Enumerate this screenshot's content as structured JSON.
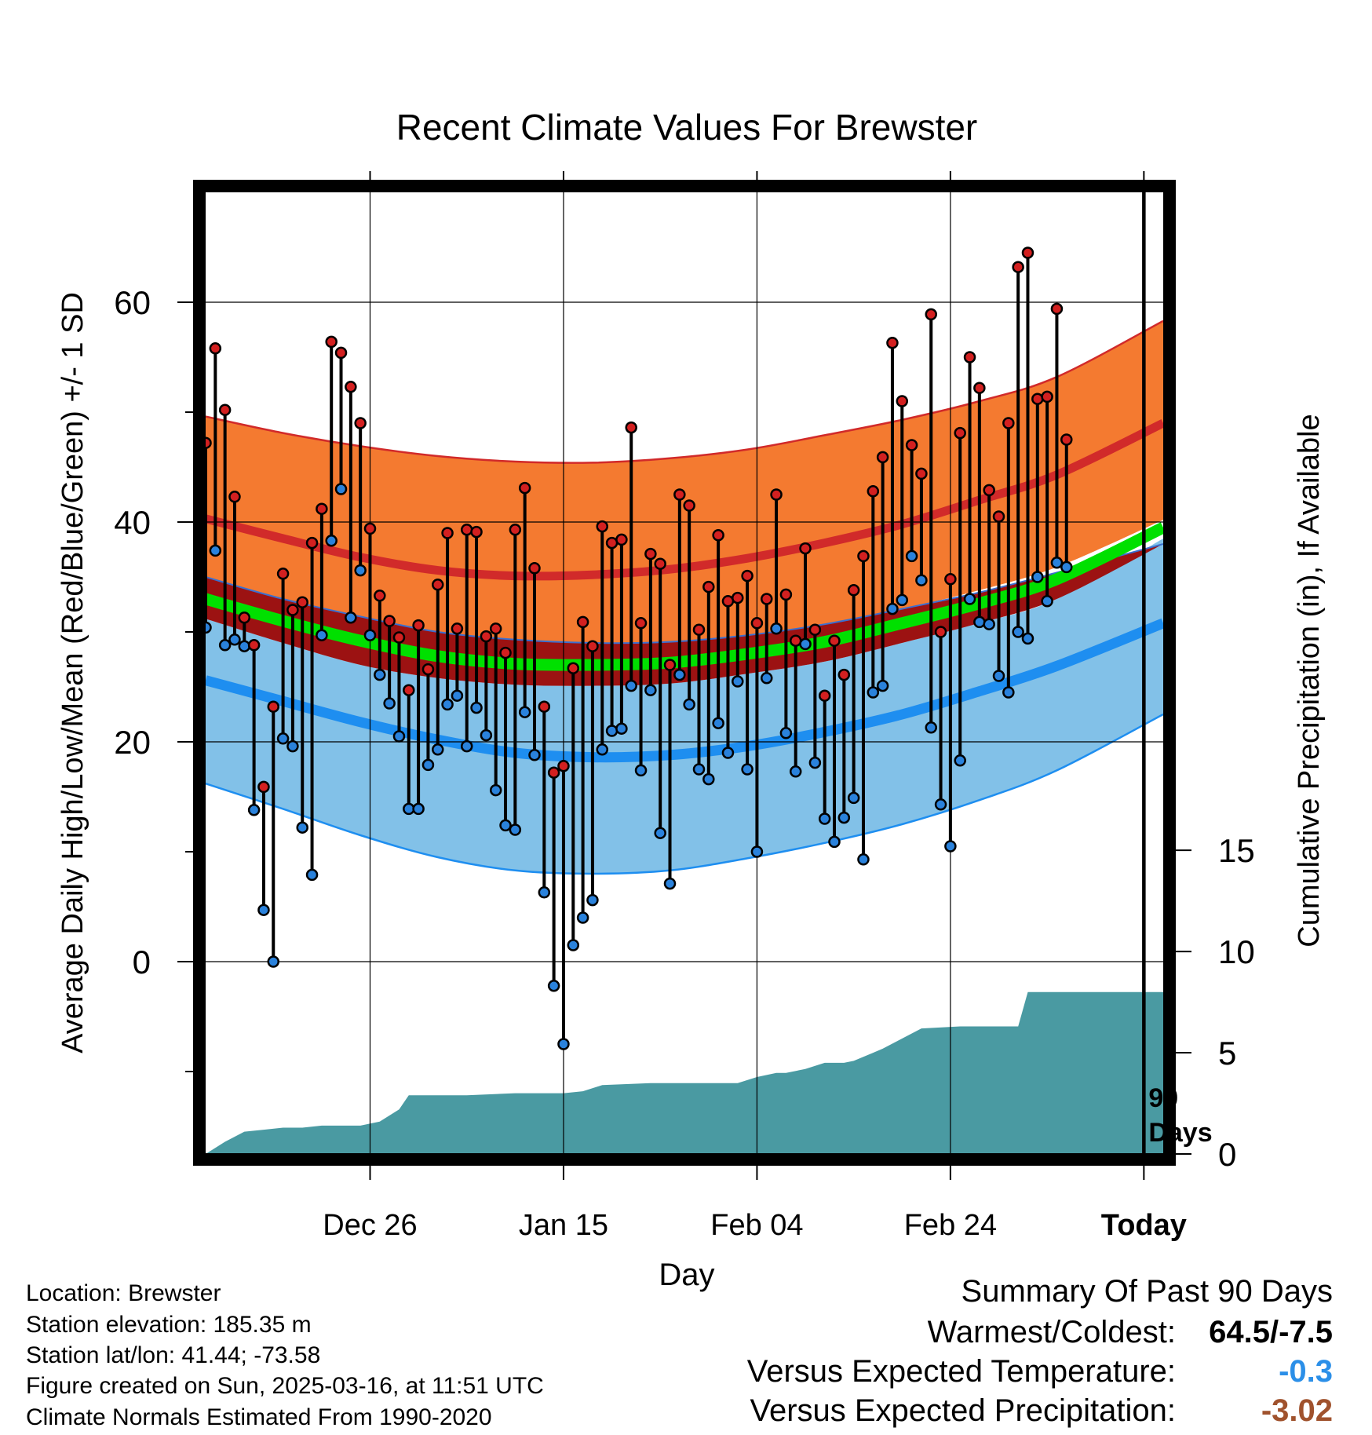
{
  "chart_data": {
    "type": "line",
    "title": "Recent Climate Values For Brewster",
    "xlabel": "Day",
    "ylabel": "Average Daily High/Low/Mean (Red/Blue/Green) +/- 1 SD",
    "y2label": "Cumulative Precipitation (in), If Available",
    "x_range_days": [
      -87,
      12
    ],
    "ylim": [
      -17.5,
      70
    ],
    "y_ticks": [
      0,
      20,
      40,
      60
    ],
    "y_minor_ticks": [
      -10,
      10,
      30,
      50
    ],
    "y2lim": [
      0,
      47.5
    ],
    "y2_ticks": [
      0,
      5,
      10,
      15
    ],
    "x_ticks": [
      {
        "day": -70,
        "label": "Dec 26"
      },
      {
        "day": -50,
        "label": "Jan 15"
      },
      {
        "day": -30,
        "label": "Feb 04"
      },
      {
        "day": -10,
        "label": "Feb 24"
      },
      {
        "day": 10,
        "label": "Today"
      }
    ],
    "today_day": 10,
    "today_label_line1": "90",
    "today_label_line2": "Days",
    "colors": {
      "high_band": "#f47a30",
      "high_mean": "#d12a2a",
      "low_band": "#82c1e8",
      "low_mean": "#1e8ef0",
      "mean_band": "#9c1212",
      "mean_line": "#00e000",
      "precip": "#4a9aa2",
      "high_dot": "#d32020",
      "low_dot": "#2a82dc"
    },
    "normals": {
      "days": [
        -87,
        -79,
        -71,
        -63,
        -55,
        -47,
        -39,
        -31,
        -23,
        -15,
        -7,
        1,
        12
      ],
      "high_plus_sd": [
        49.6,
        48.1,
        46.9,
        46.0,
        45.5,
        45.4,
        45.8,
        46.6,
        47.9,
        49.3,
        51.0,
        53.2,
        58.3
      ],
      "high_mean": [
        40.3,
        38.5,
        36.8,
        35.6,
        35.1,
        35.2,
        35.7,
        36.7,
        38.1,
        39.8,
        42.0,
        44.3,
        49.0
      ],
      "high_minus_sd": [
        35.0,
        33.0,
        31.4,
        30.0,
        29.3,
        29.0,
        29.1,
        29.7,
        30.7,
        32.1,
        33.8,
        35.9,
        40.2
      ],
      "mean_plus_sd": [
        35.0,
        33.0,
        31.4,
        30.0,
        29.3,
        29.0,
        29.1,
        29.7,
        30.7,
        32.1,
        33.6,
        35.4,
        38.0
      ],
      "mean_line": [
        33.0,
        31.0,
        29.2,
        27.8,
        27.1,
        27.0,
        27.2,
        28.0,
        29.1,
        30.8,
        32.6,
        34.8,
        39.5
      ],
      "mean_minus_sd": [
        31.2,
        29.0,
        27.0,
        25.8,
        25.2,
        25.1,
        25.3,
        26.2,
        27.3,
        29.0,
        30.8,
        33.0,
        38.0
      ],
      "low_mean": [
        25.6,
        23.7,
        21.8,
        20.2,
        19.0,
        18.6,
        18.8,
        19.6,
        20.9,
        22.5,
        24.6,
        26.9,
        30.8
      ],
      "low_plus_sd": [
        31.2,
        29.0,
        27.0,
        25.8,
        25.2,
        25.1,
        25.3,
        26.2,
        27.3,
        29.0,
        30.8,
        33.0,
        38.5
      ],
      "low_minus_sd": [
        16.2,
        13.9,
        11.5,
        9.5,
        8.3,
        8.0,
        8.3,
        9.4,
        10.8,
        12.5,
        14.7,
        17.4,
        22.5
      ]
    },
    "daily": {
      "start_day": -87,
      "high": [
        47.2,
        55.8,
        50.2,
        42.3,
        31.3,
        28.8,
        15.9,
        23.2,
        35.3,
        32.0,
        32.7,
        38.1,
        41.2,
        56.4,
        55.4,
        52.3,
        49.0,
        39.4,
        33.3,
        31.0,
        29.5,
        24.7,
        30.6,
        26.6,
        34.3,
        39.0,
        30.3,
        39.3,
        39.1,
        29.6,
        30.3,
        28.1,
        39.3,
        43.1,
        35.8,
        23.2,
        17.2,
        17.8,
        26.7,
        30.9,
        28.7,
        39.6,
        38.1,
        38.4,
        48.6,
        30.8,
        37.1,
        36.2,
        27.0,
        42.5,
        41.5,
        30.2,
        34.1,
        38.8,
        32.8,
        33.1,
        35.1,
        30.8,
        33.0,
        42.5,
        33.4,
        29.2,
        37.6,
        30.2,
        24.2,
        29.2,
        26.1,
        33.8,
        36.9,
        42.8,
        45.9,
        56.3,
        51.0,
        47.0,
        44.4,
        58.9,
        30.0,
        34.8,
        48.1,
        55.0,
        52.2,
        42.9,
        40.5,
        49.0,
        63.2,
        64.5,
        51.2,
        51.4,
        59.4,
        47.5
      ],
      "low": [
        30.4,
        37.4,
        28.8,
        29.3,
        28.7,
        13.8,
        4.7,
        0.0,
        20.3,
        19.6,
        12.2,
        7.9,
        29.7,
        38.3,
        43.0,
        31.3,
        35.6,
        29.7,
        26.1,
        23.5,
        20.5,
        13.9,
        13.9,
        17.9,
        19.3,
        23.4,
        24.2,
        19.6,
        23.1,
        20.6,
        15.6,
        12.4,
        12.0,
        22.7,
        18.8,
        6.3,
        -2.2,
        -7.5,
        1.5,
        4.0,
        5.6,
        19.3,
        21.0,
        21.2,
        25.1,
        17.4,
        24.7,
        11.7,
        7.1,
        26.1,
        23.4,
        17.5,
        16.6,
        21.7,
        19.0,
        25.5,
        17.5,
        10.0,
        25.8,
        30.3,
        20.8,
        17.3,
        28.9,
        18.1,
        13.0,
        10.9,
        13.1,
        14.9,
        9.3,
        24.5,
        25.1,
        32.1,
        32.9,
        36.9,
        34.7,
        21.3,
        14.3,
        10.5,
        18.3,
        33.0,
        30.9,
        30.7,
        26.0,
        24.5,
        30.0,
        29.4,
        35.0,
        32.8,
        36.3,
        35.9
      ]
    },
    "precip": {
      "days": [
        -87,
        -85,
        -83,
        -81,
        -79,
        -77,
        -75,
        -73,
        -71,
        -69,
        -67,
        -66,
        -64,
        -60,
        -55,
        -50,
        -48,
        -46,
        -41,
        -36,
        -34,
        -32,
        -30,
        -28,
        -27,
        -25,
        -23,
        -21,
        -20,
        -19,
        -18,
        -17,
        -13,
        -9,
        -8,
        -7,
        -5,
        -3,
        -2,
        1,
        9
      ],
      "values": [
        0.0,
        0.6,
        1.1,
        1.2,
        1.3,
        1.3,
        1.4,
        1.4,
        1.4,
        1.6,
        2.2,
        2.9,
        2.9,
        2.9,
        3.0,
        3.0,
        3.1,
        3.4,
        3.5,
        3.5,
        3.5,
        3.5,
        3.8,
        4.0,
        4.0,
        4.2,
        4.5,
        4.5,
        4.6,
        4.8,
        5.0,
        5.2,
        6.2,
        6.3,
        6.3,
        6.3,
        6.3,
        6.3,
        8.0,
        8.0,
        8.0
      ]
    }
  },
  "meta": {
    "location": "Location: Brewster",
    "elevation": "Station elevation: 185.35 m",
    "latlon": "Station lat/lon: 41.44; -73.58",
    "created": "Figure created on Sun, 2025-03-16, at 11:51 UTC",
    "normals": "Climate Normals Estimated From 1990-2020"
  },
  "summary": {
    "title": "Summary Of Past 90 Days",
    "warm_cold_label": "Warmest/Coldest:",
    "warm_cold_value": "64.5/-7.5",
    "temp_label": "Versus Expected Temperature:",
    "temp_value": "-0.3",
    "temp_color": "#2b8fe8",
    "precip_label": "Versus Expected Precipitation:",
    "precip_value": "-3.02",
    "precip_color": "#a0522d"
  }
}
